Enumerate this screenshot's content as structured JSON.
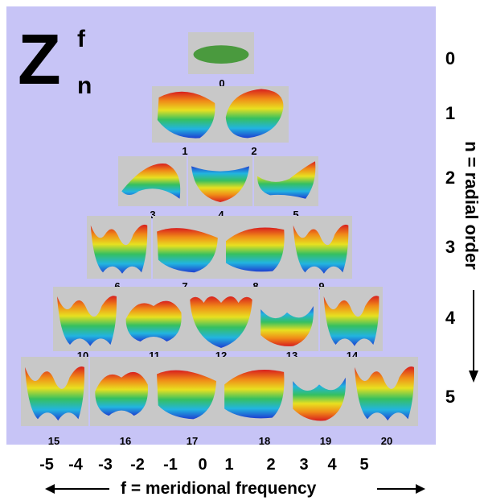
{
  "title": {
    "symbol": "Z",
    "superscript": "f",
    "subscript": "n"
  },
  "radial_order_label": "n = radial order",
  "frequency_axis_label": "f = meridional frequency",
  "radial_orders": [
    "0",
    "1",
    "2",
    "3",
    "4",
    "5"
  ],
  "frequency_ticks": [
    "-5",
    "-4",
    "-3",
    "-2",
    "-1",
    "0",
    "1",
    "2",
    "3",
    "4",
    "5"
  ],
  "mode_indices": [
    "0",
    "1",
    "2",
    "3",
    "4",
    "5",
    "6",
    "7",
    "8",
    "9",
    "10",
    "11",
    "12",
    "13",
    "14",
    "15",
    "16",
    "17",
    "18",
    "19",
    "20"
  ],
  "colors": {
    "panel": "#c7c4f6",
    "tile": "#c8c8c8",
    "piston": "#4a9a3e",
    "surface_gradient": [
      "#1e3fd0",
      "#22b4e0",
      "#36c060",
      "#e8e020",
      "#f08a18",
      "#d81e1e"
    ]
  }
}
